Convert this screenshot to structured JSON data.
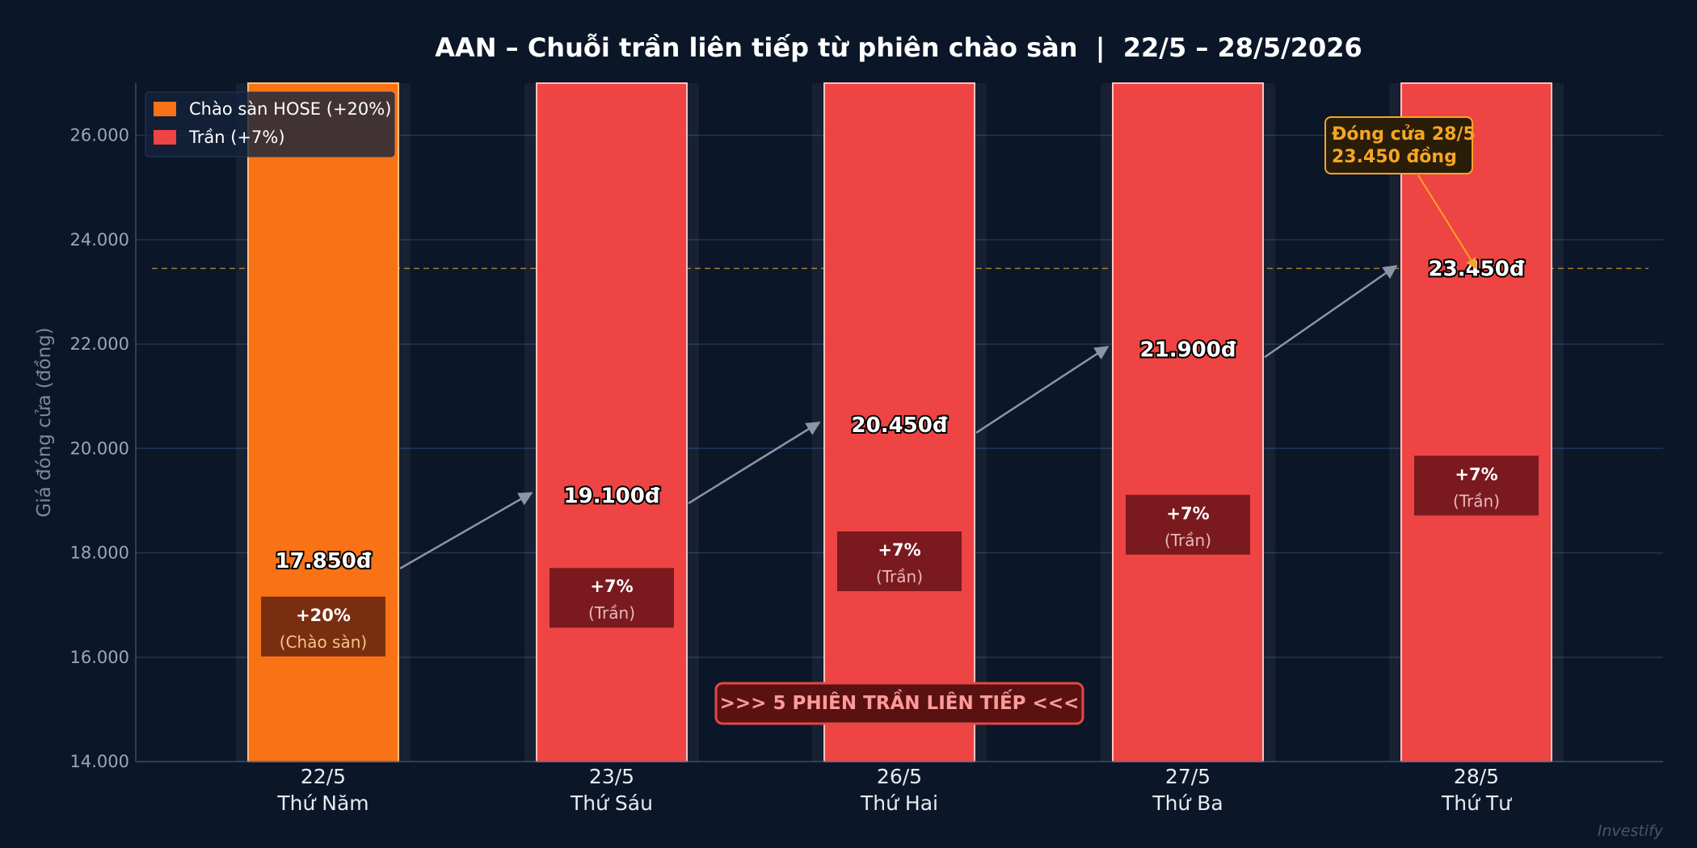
{
  "chart_data": {
    "type": "bar",
    "title": "AAN – Chuỗi trần liên tiếp từ phiên chào sàn  |  22/5 – 28/5/2026",
    "ylabel": "Giá đóng cửa (đồng)",
    "xlabel": "",
    "ylim": [
      14000,
      27000
    ],
    "yticks": [
      14000,
      16000,
      18000,
      20000,
      22000,
      24000,
      26000
    ],
    "ytick_labels": [
      "14.000",
      "16.000",
      "18.000",
      "20.000",
      "22.000",
      "24.000",
      "26.000"
    ],
    "grid": true,
    "categories": [
      "22/5",
      "23/5",
      "26/5",
      "27/5",
      "28/5"
    ],
    "weekdays": [
      "Thứ Năm",
      "Thứ Sáu",
      "Thứ Hai",
      "Thứ Ba",
      "Thứ Tư"
    ],
    "values": [
      17850,
      19100,
      20450,
      21900,
      23450
    ],
    "value_labels": [
      "17.850đ",
      "19.100đ",
      "20.450đ",
      "21.900đ",
      "23.450đ"
    ],
    "badge_top": [
      "+20%",
      "+7%",
      "+7%",
      "+7%",
      "+7%"
    ],
    "badge_bottom": [
      "(Chào sàn)",
      "(Trần)",
      "(Trần)",
      "(Trần)",
      "(Trần)"
    ],
    "badge_y": [
      16000,
      16550,
      17250,
      17950,
      18700
    ],
    "series_kind": [
      "listing",
      "ceiling",
      "ceiling",
      "ceiling",
      "ceiling"
    ],
    "reference_line": 23450,
    "legend": {
      "position": "top-left",
      "items": [
        {
          "label": "Chào sàn HOSE (+20%)",
          "color": "#f97316"
        },
        {
          "label": "Trần (+7%)",
          "color": "#ef4444"
        }
      ]
    },
    "annotation": {
      "text_line1": "Đóng cửa 28/5",
      "text_line2": "23.450 đồng",
      "target_index": 4,
      "target_value": 23450
    },
    "banner": ">>> 5 PHIÊN TRẦN LIÊN TIẾP <<<",
    "colors": {
      "listing": "#f97316",
      "ceiling": "#ef4444",
      "annotation": "#f5a623"
    }
  },
  "watermark": "Investify"
}
